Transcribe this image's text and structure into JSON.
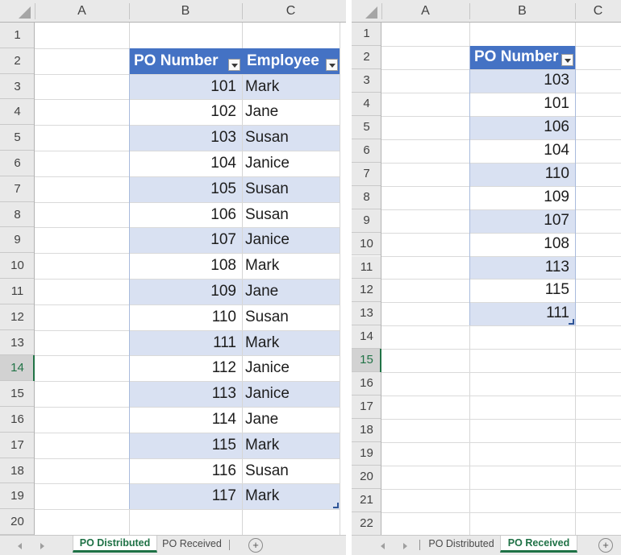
{
  "colors": {
    "header_blue": "#4472C4",
    "band_blue": "#D9E1F2",
    "selection_green": "#217346",
    "tab_green": "#1E7145",
    "handle_blue": "#2F5597",
    "header_gray": "#E9E9E9"
  },
  "icons": {
    "add_sheet": "+",
    "filter_dropdown": "▾",
    "select_all": "◿",
    "nav_left": "◄",
    "nav_right": "►"
  },
  "left_sheet": {
    "column_letters": [
      "A",
      "B",
      "C"
    ],
    "visible_row_count": 20,
    "selected_cell": "A14",
    "selected_row": 14,
    "table": {
      "header": [
        "PO Number",
        "Employee"
      ],
      "rows": [
        [
          101,
          "Mark"
        ],
        [
          102,
          "Jane"
        ],
        [
          103,
          "Susan"
        ],
        [
          104,
          "Janice"
        ],
        [
          105,
          "Susan"
        ],
        [
          106,
          "Susan"
        ],
        [
          107,
          "Janice"
        ],
        [
          108,
          "Mark"
        ],
        [
          109,
          "Jane"
        ],
        [
          110,
          "Susan"
        ],
        [
          111,
          "Mark"
        ],
        [
          112,
          "Janice"
        ],
        [
          113,
          "Janice"
        ],
        [
          114,
          "Jane"
        ],
        [
          115,
          "Mark"
        ],
        [
          116,
          "Susan"
        ],
        [
          117,
          "Mark"
        ]
      ]
    },
    "tabs": [
      {
        "label": "PO Distributed",
        "active": true
      },
      {
        "label": "PO Received",
        "active": false
      }
    ]
  },
  "right_sheet": {
    "column_letters": [
      "A",
      "B",
      "C"
    ],
    "visible_row_count": 22,
    "selected_cell": "A15",
    "selected_row": 15,
    "table": {
      "header": [
        "PO Number"
      ],
      "rows": [
        [
          103
        ],
        [
          101
        ],
        [
          106
        ],
        [
          104
        ],
        [
          110
        ],
        [
          109
        ],
        [
          107
        ],
        [
          108
        ],
        [
          113
        ],
        [
          115
        ],
        [
          111
        ]
      ]
    },
    "tabs": [
      {
        "label": "PO Distributed",
        "active": false
      },
      {
        "label": "PO Received",
        "active": true
      }
    ]
  }
}
